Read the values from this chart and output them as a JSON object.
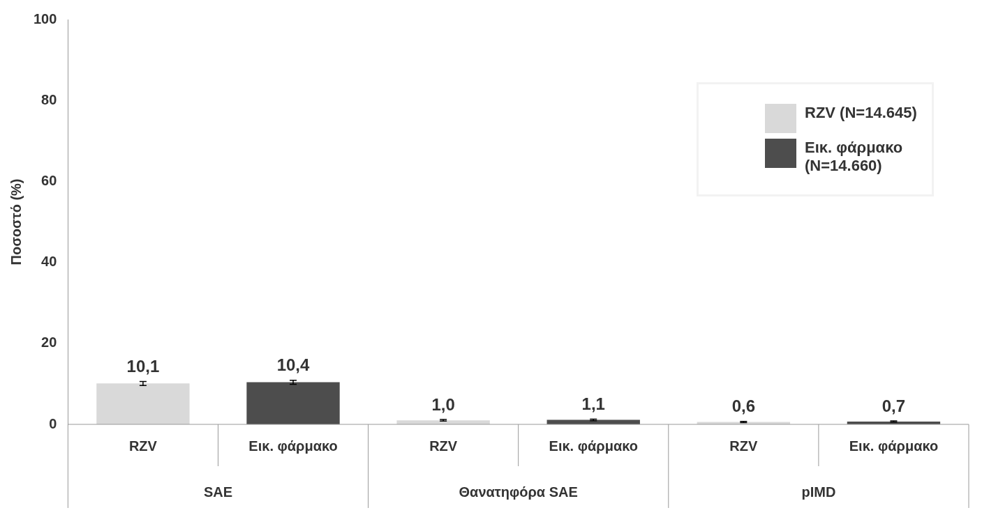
{
  "chart_data": {
    "type": "bar",
    "ylabel": "Ποσοστό (%)",
    "categories": [
      "RZV",
      "Εικ. φάρμακο",
      "RZV",
      "Εικ. φάρμακο",
      "RZV",
      "Εικ. φάρμακο"
    ],
    "annotations": [
      "SAE",
      "Θανατηφόρα SAE",
      "pIMD"
    ],
    "series": [
      {
        "name": "RZV (N=14.645)",
        "color": "#d9d9d9",
        "values": [
          10.1,
          null,
          1.0,
          null,
          0.6,
          null
        ],
        "value_labels": [
          "10,1",
          null,
          "1,0",
          null,
          "0,6",
          null
        ],
        "errors": [
          0.5,
          null,
          0.2,
          null,
          0.15,
          null
        ]
      },
      {
        "name": "Εικ. φάρμακο (N=14.660)",
        "color": "#4d4d4d",
        "values": [
          null,
          10.4,
          null,
          1.1,
          null,
          0.7
        ],
        "value_labels": [
          null,
          "10,4",
          null,
          "1,1",
          null,
          "0,7"
        ],
        "errors": [
          null,
          0.5,
          null,
          0.2,
          null,
          0.15
        ]
      }
    ],
    "ylim": [
      0,
      100
    ],
    "yticks": [
      0,
      20,
      40,
      60,
      80,
      100
    ],
    "grid": false,
    "legend": "top right"
  }
}
